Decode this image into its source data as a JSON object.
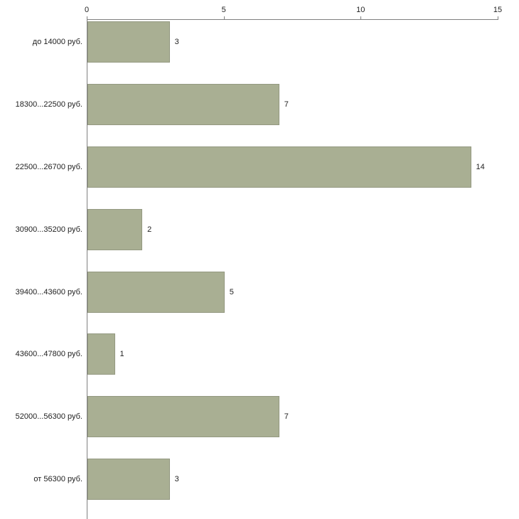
{
  "chart_data": {
    "type": "bar",
    "orientation": "horizontal",
    "title": "",
    "xlabel": "",
    "ylabel": "",
    "categories": [
      "до 14000 руб.",
      "18300...22500 руб.",
      "22500...26700 руб.",
      "30900...35200 руб.",
      "39400...43600 руб.",
      "43600...47800 руб.",
      "52000...56300 руб.",
      "от 56300 руб."
    ],
    "values": [
      3,
      7,
      14,
      2,
      5,
      1,
      7,
      3
    ],
    "xlim": [
      0,
      15
    ],
    "x_ticks": [
      0,
      5,
      10,
      15
    ],
    "bar_color": "#a9af93",
    "axis_color": "#808080",
    "text_color": "#222222",
    "grid": false,
    "legend": "none",
    "value_labels": true
  }
}
